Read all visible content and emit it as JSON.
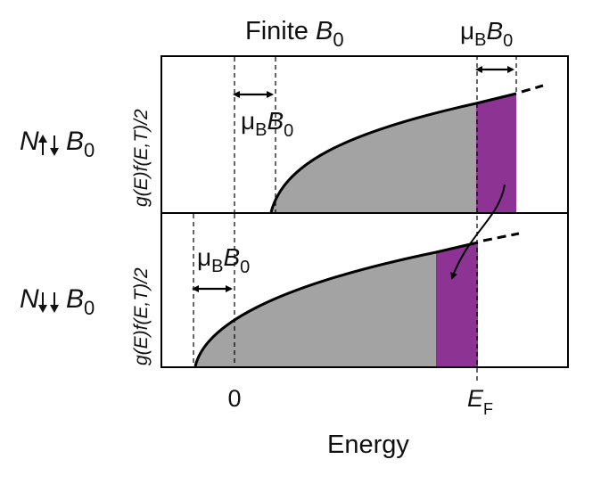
{
  "figure": {
    "title_text": "Finite ",
    "title_symbol": "B",
    "title_subscript": "0",
    "x_axis_label": "Energy",
    "tick_zero": "0",
    "tick_fermi": "E",
    "tick_fermi_subscript": "F",
    "shift_mu": "μ",
    "shift_mu_sub": "B",
    "shift_b": "B",
    "shift_b_sub": "0"
  },
  "panels": {
    "top": {
      "row_label": "N",
      "row_label_suffix": "B",
      "row_label_suffix_sub": "0",
      "y_axis_label": "g(E)f(E,T)/2"
    },
    "bottom": {
      "row_label": "N",
      "row_label_suffix": "B",
      "row_label_suffix_sub": "0",
      "y_axis_label": "g(E)f(E,T)/2"
    }
  },
  "colors": {
    "occupied_fill": "#a3a3a3",
    "spin_shift_fill": "#8c3393",
    "curve": "#000000"
  }
}
